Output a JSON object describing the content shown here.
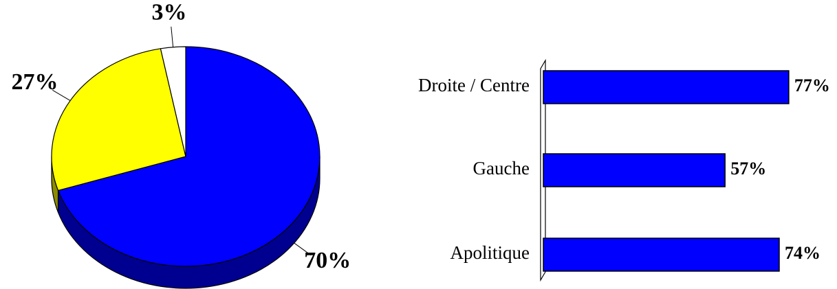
{
  "chart_data": [
    {
      "type": "pie",
      "categories": [
        null,
        null,
        null
      ],
      "values": [
        70,
        27,
        3
      ],
      "value_labels": [
        "70%",
        "27%",
        "3%"
      ],
      "colors": [
        "#0000ff",
        "#ffff00",
        "#ffffff"
      ],
      "side_colors": [
        "#000090",
        "#8c8c00",
        "#cccccc"
      ]
    },
    {
      "type": "hbar",
      "categories": [
        "Droite / Centre",
        "Gauche",
        "Apolitique"
      ],
      "values": [
        77,
        57,
        74
      ],
      "value_labels": [
        "77%",
        "57%",
        "74%"
      ],
      "color": "#0000ff"
    }
  ]
}
